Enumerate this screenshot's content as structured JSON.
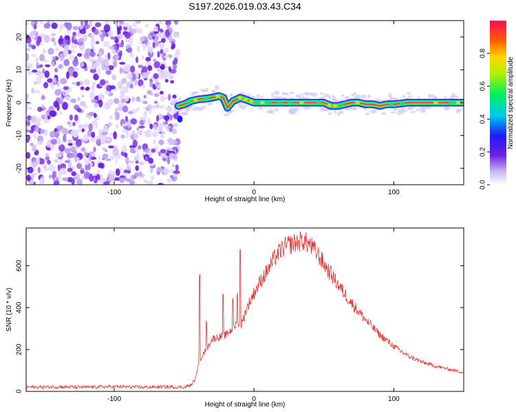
{
  "title": "S197.2026.019.03.43.C34",
  "chart_data": [
    {
      "type": "heatmap",
      "name": "spectrogram",
      "xlabel": "Height of straight line (km)",
      "ylabel": "Frequency (Hz)",
      "xlim": [
        -163,
        150
      ],
      "ylim": [
        -25,
        25
      ],
      "xticks": [
        -100,
        0,
        100
      ],
      "yticks": [
        -20,
        -10,
        0,
        10,
        20
      ],
      "noise_region_x": [
        -163,
        -54
      ],
      "signal_start_x": -54,
      "ridge": {
        "x": [
          -54,
          -50,
          -45,
          -40,
          -35,
          -30,
          -25,
          -22,
          -19,
          -15,
          -10,
          -5,
          0,
          10,
          20,
          30,
          40,
          50,
          55,
          60,
          70,
          75,
          80,
          85,
          90,
          95,
          100,
          110,
          120,
          130,
          140,
          150
        ],
        "freq": [
          -1,
          -0.5,
          0.5,
          1,
          1.2,
          1.5,
          2,
          1.5,
          -1.5,
          0.5,
          1.5,
          0.8,
          0,
          0,
          0,
          0,
          0,
          0,
          -1,
          -1,
          0,
          0,
          -0.5,
          -0.5,
          -1,
          -0.5,
          -0.5,
          0,
          0,
          0,
          0,
          0
        ]
      },
      "colorbar": {
        "label": "Normalized spectral amplitude",
        "range": [
          0,
          1
        ],
        "ticks": [
          "0.0",
          "0.2",
          "0.4",
          "0.6",
          "0.8"
        ]
      }
    },
    {
      "type": "line",
      "name": "snr",
      "xlabel": "Height of straight line (km)",
      "ylabel": "SNR (10 * v/v)",
      "xlim": [
        -163,
        150
      ],
      "ylim": [
        0,
        780
      ],
      "xticks": [
        -100,
        0,
        100
      ],
      "yticks": [
        0,
        200,
        400,
        600
      ],
      "series_color": "#e8302c",
      "x": [
        -163,
        -140,
        -120,
        -100,
        -80,
        -60,
        -50,
        -45,
        -42,
        -40,
        -38,
        -36,
        -34,
        -30,
        -25,
        -20,
        -15,
        -12,
        -10,
        -5,
        0,
        5,
        10,
        15,
        20,
        25,
        30,
        35,
        40,
        45,
        50,
        60,
        70,
        80,
        90,
        100,
        110,
        120,
        130,
        140,
        150
      ],
      "values": [
        20,
        22,
        20,
        23,
        20,
        22,
        20,
        30,
        60,
        120,
        160,
        180,
        200,
        250,
        260,
        270,
        300,
        330,
        300,
        400,
        470,
        530,
        580,
        640,
        680,
        700,
        710,
        720,
        700,
        660,
        610,
        510,
        420,
        340,
        270,
        215,
        170,
        140,
        120,
        105,
        90
      ],
      "spikes": [
        {
          "x": -39,
          "y": 560
        },
        {
          "x": -34,
          "y": 340
        },
        {
          "x": -22,
          "y": 480
        },
        {
          "x": -15,
          "y": 450
        },
        {
          "x": -12,
          "y": 470
        },
        {
          "x": -10,
          "y": 680
        }
      ]
    }
  ]
}
